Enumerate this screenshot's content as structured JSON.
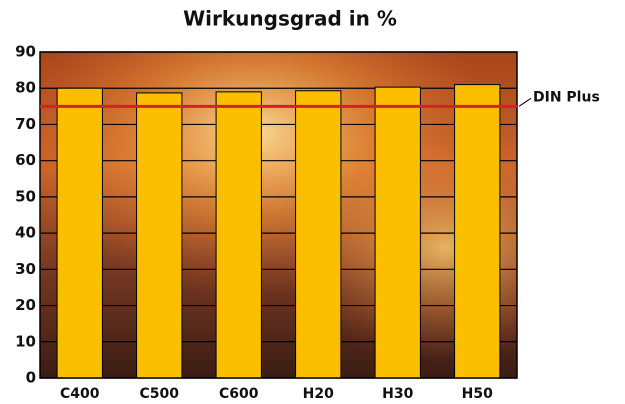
{
  "chart_data": {
    "type": "bar",
    "title": "Wirkungsgrad in %",
    "categories": [
      "C400",
      "C500",
      "C600",
      "H20",
      "H30",
      "H50"
    ],
    "values": [
      80,
      78.7,
      79,
      79.3,
      80.3,
      81
    ],
    "color": "#fbbf00",
    "ylim": [
      0,
      90
    ],
    "yticks": [
      0,
      10,
      20,
      30,
      40,
      50,
      60,
      70,
      80,
      90
    ],
    "grid": true,
    "reference_line": {
      "value": 75,
      "label": "DIN Plus",
      "color": "#d4202c"
    }
  }
}
